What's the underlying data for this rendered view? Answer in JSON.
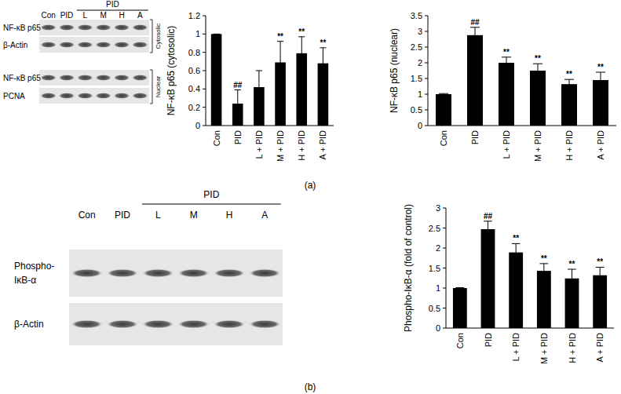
{
  "chart_data": [
    {
      "type": "bar",
      "y_label": "NF-κB p65 (cytosolic)",
      "categories": [
        "Con",
        "PID",
        "L + PID",
        "M + PID",
        "H + PID",
        "A + PID"
      ],
      "values": [
        1,
        0.24,
        0.42,
        0.69,
        0.79,
        0.68
      ],
      "errors": [
        0,
        0.15,
        0.18,
        0.23,
        0.18,
        0.17
      ],
      "significance": [
        null,
        "##",
        null,
        "**",
        "**",
        "**"
      ],
      "color": "#000000",
      "ylim": [
        0,
        1.2
      ],
      "yticks": [
        0,
        0.2,
        0.4,
        0.6,
        0.8,
        1,
        1.2
      ],
      "grid": false
    },
    {
      "type": "bar",
      "y_label": "NF-κB p65 (nuclear)",
      "categories": [
        "Con",
        "PID",
        "L + PID",
        "M + PID",
        "H + PID",
        "A + PID"
      ],
      "values": [
        1,
        2.88,
        2.0,
        1.75,
        1.32,
        1.45
      ],
      "errors": [
        0.02,
        0.25,
        0.18,
        0.22,
        0.15,
        0.25
      ],
      "significance": [
        null,
        "##",
        "**",
        "**",
        "**",
        "**"
      ],
      "color": "#000000",
      "ylim": [
        0,
        3.5
      ],
      "yticks": [
        0,
        0.5,
        1,
        1.5,
        2,
        2.5,
        3,
        3.5
      ],
      "grid": false
    },
    {
      "type": "bar",
      "y_label": "Phospho-IκB-α (fold of control)",
      "categories": [
        "Con",
        "PID",
        "L + PID",
        "M + PID",
        "H + PID",
        "A + PID"
      ],
      "values": [
        1,
        2.47,
        1.89,
        1.43,
        1.24,
        1.32
      ],
      "errors": [
        0.01,
        0.2,
        0.22,
        0.18,
        0.23,
        0.2
      ],
      "significance": [
        null,
        "##",
        "**",
        "**",
        "**",
        "**"
      ],
      "color": "#000000",
      "ylim": [
        0,
        3
      ],
      "yticks": [
        0,
        0.5,
        1,
        1.5,
        2,
        2.5,
        3
      ],
      "grid": false
    }
  ],
  "blots": [
    {
      "header": "PID",
      "lanes": [
        "Con",
        "PID",
        "L",
        "M",
        "H",
        "A"
      ],
      "rows": [
        [
          "NF-κB p65"
        ],
        [
          "β-Actin"
        ],
        [
          "NF-κB p65"
        ],
        [
          "PCNA"
        ]
      ],
      "fractions": [
        "Cytosolic",
        "Nuclear"
      ]
    },
    {
      "header": "PID",
      "lanes": [
        "Con",
        "PID",
        "L",
        "M",
        "H",
        "A"
      ],
      "rows": [
        [
          "Phospho-",
          "IκB-α"
        ],
        [
          "β-Actin"
        ]
      ],
      "fractions": []
    }
  ],
  "panels": [
    "(a)",
    "(b)"
  ]
}
